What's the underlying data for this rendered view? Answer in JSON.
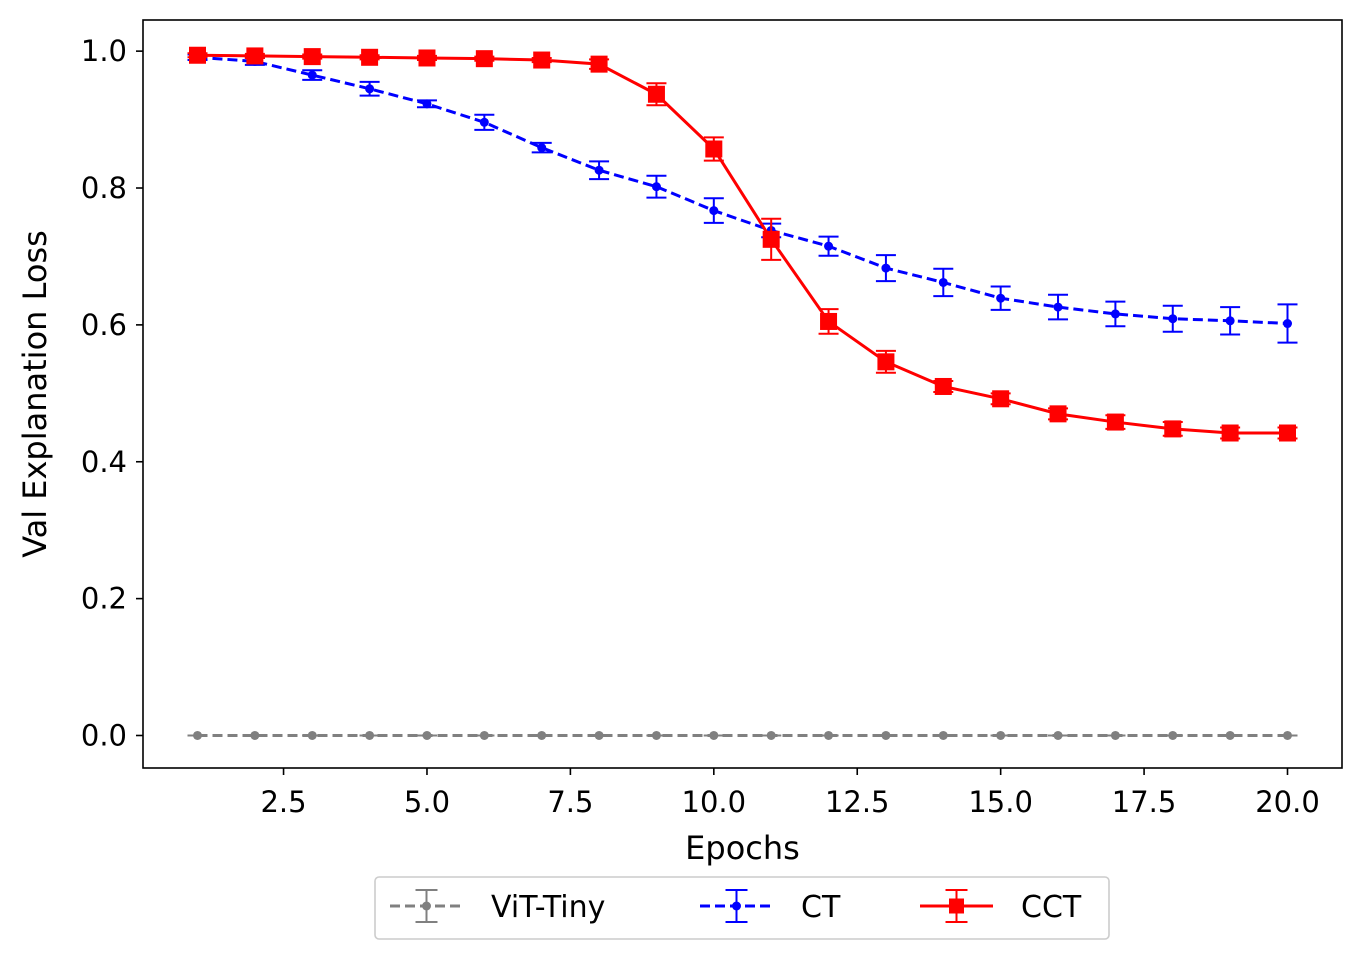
{
  "chart_data": {
    "type": "line",
    "title": "",
    "xlabel": "Epochs",
    "ylabel": "Val Explanation Loss",
    "xlim": [
      0.05,
      20.95
    ],
    "ylim": [
      -0.0475,
      1.0455
    ],
    "xticks": [
      2.5,
      5.0,
      7.5,
      10.0,
      12.5,
      15.0,
      17.5,
      20.0
    ],
    "xtick_labels": [
      "2.5",
      "5.0",
      "7.5",
      "10.0",
      "12.5",
      "15.0",
      "17.5",
      "20.0"
    ],
    "yticks": [
      0.0,
      0.2,
      0.4,
      0.6,
      0.8,
      1.0
    ],
    "ytick_labels": [
      "0.0",
      "0.2",
      "0.4",
      "0.6",
      "0.8",
      "1.0"
    ],
    "grid": false,
    "legend_position": "bottom-center, outside below plot, 3 columns",
    "x": [
      1,
      2,
      3,
      4,
      5,
      6,
      7,
      8,
      9,
      10,
      11,
      12,
      13,
      14,
      15,
      16,
      17,
      18,
      19,
      20
    ],
    "series": [
      {
        "name": "ViT-Tiny",
        "color": "#808080",
        "linestyle": "dashed",
        "marker": "circle",
        "values": [
          0.0,
          0.0,
          0.0,
          0.0,
          0.0,
          0.0,
          0.0,
          0.0,
          0.0,
          0.0,
          0.0,
          0.0,
          0.0,
          0.0,
          0.0,
          0.0,
          0.0,
          0.0,
          0.0,
          0.0
        ],
        "errors": [
          0.0,
          0.0,
          0.0,
          0.0,
          0.0,
          0.0,
          0.0,
          0.0,
          0.0,
          0.0,
          0.0,
          0.0,
          0.0,
          0.0,
          0.0,
          0.0,
          0.0,
          0.0,
          0.0,
          0.0
        ]
      },
      {
        "name": "CT",
        "color": "#0000ff",
        "linestyle": "dashed",
        "marker": "circle",
        "values": [
          0.991,
          0.985,
          0.965,
          0.945,
          0.923,
          0.896,
          0.859,
          0.826,
          0.802,
          0.767,
          0.738,
          0.715,
          0.683,
          0.662,
          0.639,
          0.626,
          0.616,
          0.609,
          0.606,
          0.602
        ],
        "errors": [
          0.004,
          0.005,
          0.007,
          0.01,
          0.005,
          0.011,
          0.007,
          0.013,
          0.016,
          0.018,
          0.01,
          0.014,
          0.019,
          0.02,
          0.017,
          0.018,
          0.018,
          0.019,
          0.02,
          0.028
        ]
      },
      {
        "name": "CCT",
        "color": "#ff0000",
        "linestyle": "solid",
        "marker": "square",
        "values": [
          0.994,
          0.993,
          0.992,
          0.991,
          0.99,
          0.989,
          0.987,
          0.981,
          0.937,
          0.857,
          0.725,
          0.605,
          0.546,
          0.51,
          0.492,
          0.47,
          0.458,
          0.448,
          0.442,
          0.442
        ],
        "errors": [
          0.003,
          0.003,
          0.003,
          0.003,
          0.003,
          0.003,
          0.003,
          0.007,
          0.016,
          0.017,
          0.03,
          0.018,
          0.016,
          0.008,
          0.008,
          0.008,
          0.01,
          0.01,
          0.008,
          0.008
        ]
      }
    ]
  }
}
